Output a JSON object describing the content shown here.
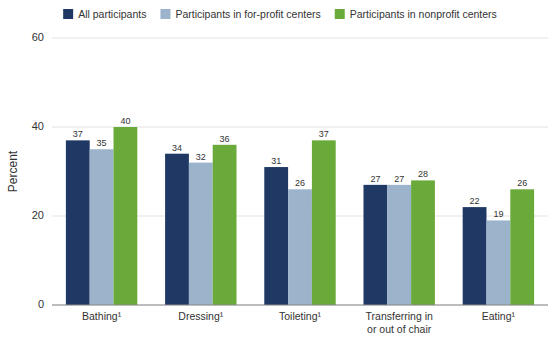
{
  "chart_data": {
    "type": "bar",
    "categories": [
      "Bathing¹",
      "Dressing¹",
      "Toileting¹",
      "Transferring in\nor out of chair",
      "Eating¹"
    ],
    "series": [
      {
        "name": "All participants",
        "color": "#1f3864",
        "values": [
          37,
          34,
          31,
          27,
          22
        ]
      },
      {
        "name": "Participants in for-profit centers",
        "color": "#9cb3cc",
        "values": [
          35,
          32,
          26,
          27,
          19
        ]
      },
      {
        "name": "Participants in nonprofit centers",
        "color": "#6aaa3a",
        "values": [
          40,
          36,
          37,
          28,
          26
        ]
      }
    ],
    "ylabel": "Percent",
    "ylim": [
      0,
      60
    ],
    "yticks": [
      0,
      20,
      40,
      60
    ],
    "grid": true,
    "data_labels": true,
    "legend": "top"
  }
}
